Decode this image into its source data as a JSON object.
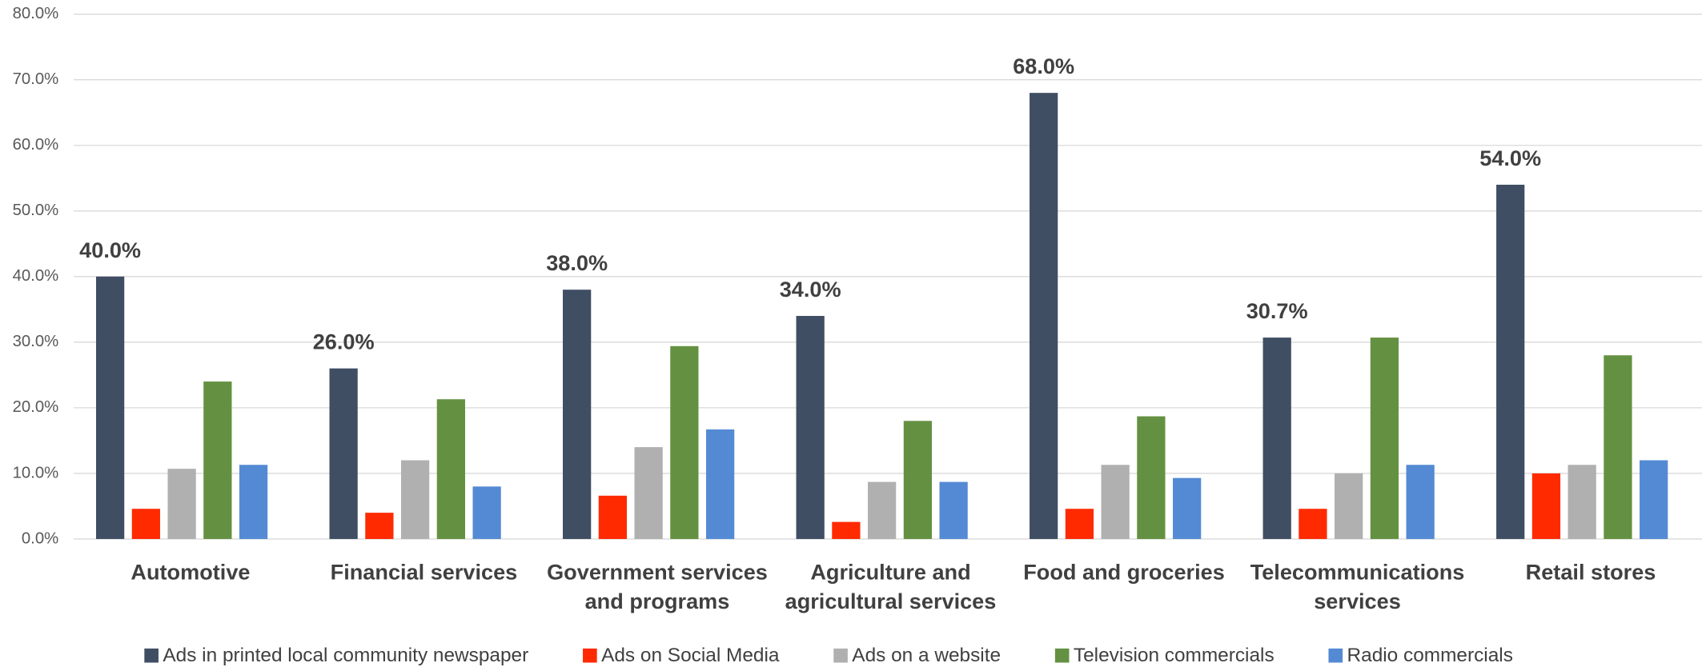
{
  "chart_data": {
    "type": "bar",
    "categories": [
      "Automotive",
      "Financial services",
      "Government services and programs",
      "Agriculture and agricultural services",
      "Food and groceries",
      "Telecommunications services",
      "Retail stores"
    ],
    "series": [
      {
        "name": "Ads in printed local community newspaper",
        "color": "#3f4e63",
        "values": [
          40,
          26,
          38,
          34,
          68,
          30.7,
          54
        ],
        "value_labels": [
          "40.0%",
          "26.0%",
          "38.0%",
          "34.0%",
          "68.0%",
          "30.7%",
          "54.0%"
        ]
      },
      {
        "name": "Ads on Social Media",
        "color": "#ff2a00",
        "values": [
          4.6,
          4,
          6.6,
          2.6,
          4.6,
          4.6,
          10
        ]
      },
      {
        "name": "Ads on a website",
        "color": "#b0b0b0",
        "values": [
          10.7,
          12,
          14,
          8.7,
          11.3,
          10,
          11.3
        ]
      },
      {
        "name": "Television commercials",
        "color": "#649141",
        "values": [
          24,
          21.3,
          29.4,
          18,
          18.7,
          30.7,
          28
        ]
      },
      {
        "name": "Radio commercials",
        "color": "#548ad3",
        "values": [
          11.3,
          8,
          16.7,
          8.7,
          9.3,
          11.3,
          12
        ]
      }
    ],
    "ylim": [
      0,
      80
    ],
    "yticks": [
      {
        "value": 0,
        "label": "0.0%"
      },
      {
        "value": 10,
        "label": "10.0%"
      },
      {
        "value": 20,
        "label": "20.0%"
      },
      {
        "value": 30,
        "label": "30.0%"
      },
      {
        "value": 40,
        "label": "40.0%"
      },
      {
        "value": 50,
        "label": "50.0%"
      },
      {
        "value": 60,
        "label": "60.0%"
      },
      {
        "value": 70,
        "label": "70.0%"
      },
      {
        "value": 80,
        "label": "80.0%"
      }
    ],
    "grid": true,
    "legend": "bottom"
  }
}
